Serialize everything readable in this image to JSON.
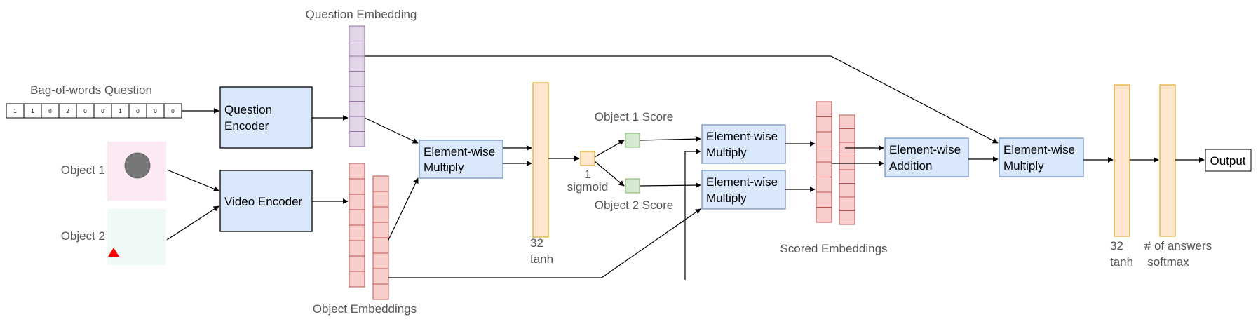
{
  "labels": {
    "question_embedding": "Question Embedding",
    "bag_of_words": "Bag-of-words Question",
    "object1": "Object 1",
    "object2": "Object 2",
    "object_embeddings": "Object Embeddings",
    "dim_32_a": "32",
    "tanh_a": "tanh",
    "score_dim": "1",
    "sigmoid": "sigmoid",
    "object1_score": "Object 1 Score",
    "object2_score": "Object 2 Score",
    "scored_embeddings": "Scored Embeddings",
    "dim_32_b": "32",
    "tanh_b": "tanh",
    "num_answers": "# of answers",
    "softmax": "softmax"
  },
  "boxes": {
    "question_encoder_line1": "Question",
    "question_encoder_line2": "Encoder",
    "video_encoder": "Video Encoder",
    "ew_multiply_1_line1": "Element-wise",
    "ew_multiply_1_line2": "Multiply",
    "ew_multiply_2_line1": "Element-wise",
    "ew_multiply_2_line2": "Multiply",
    "ew_multiply_3_line1": "Element-wise",
    "ew_multiply_3_line2": "Multiply",
    "ew_addition_line1": "Element-wise",
    "ew_addition_line2": "Addition",
    "ew_multiply_4_line1": "Element-wise",
    "ew_multiply_4_line2": "Multiply",
    "output": "Output"
  },
  "bow_values": [
    "1",
    "1",
    "0",
    "2",
    "0",
    "0",
    "1",
    "0",
    "0",
    "0"
  ],
  "colors": {
    "encoder_fill": "#dae8fc",
    "question_embedding_fill": "#e1d5e7",
    "question_embedding_stroke": "#9673a6",
    "object_embedding_fill": "#f8cecc",
    "object_embedding_stroke": "#b85450",
    "orange_fill": "#ffe6cc",
    "orange_stroke": "#d79b00",
    "score_fill": "#d5e8d4",
    "score_stroke": "#82b366",
    "object1_bg": "#fce8f3",
    "object2_bg": "#effaf6",
    "circle": "#777777",
    "triangle": "#ff0000"
  }
}
